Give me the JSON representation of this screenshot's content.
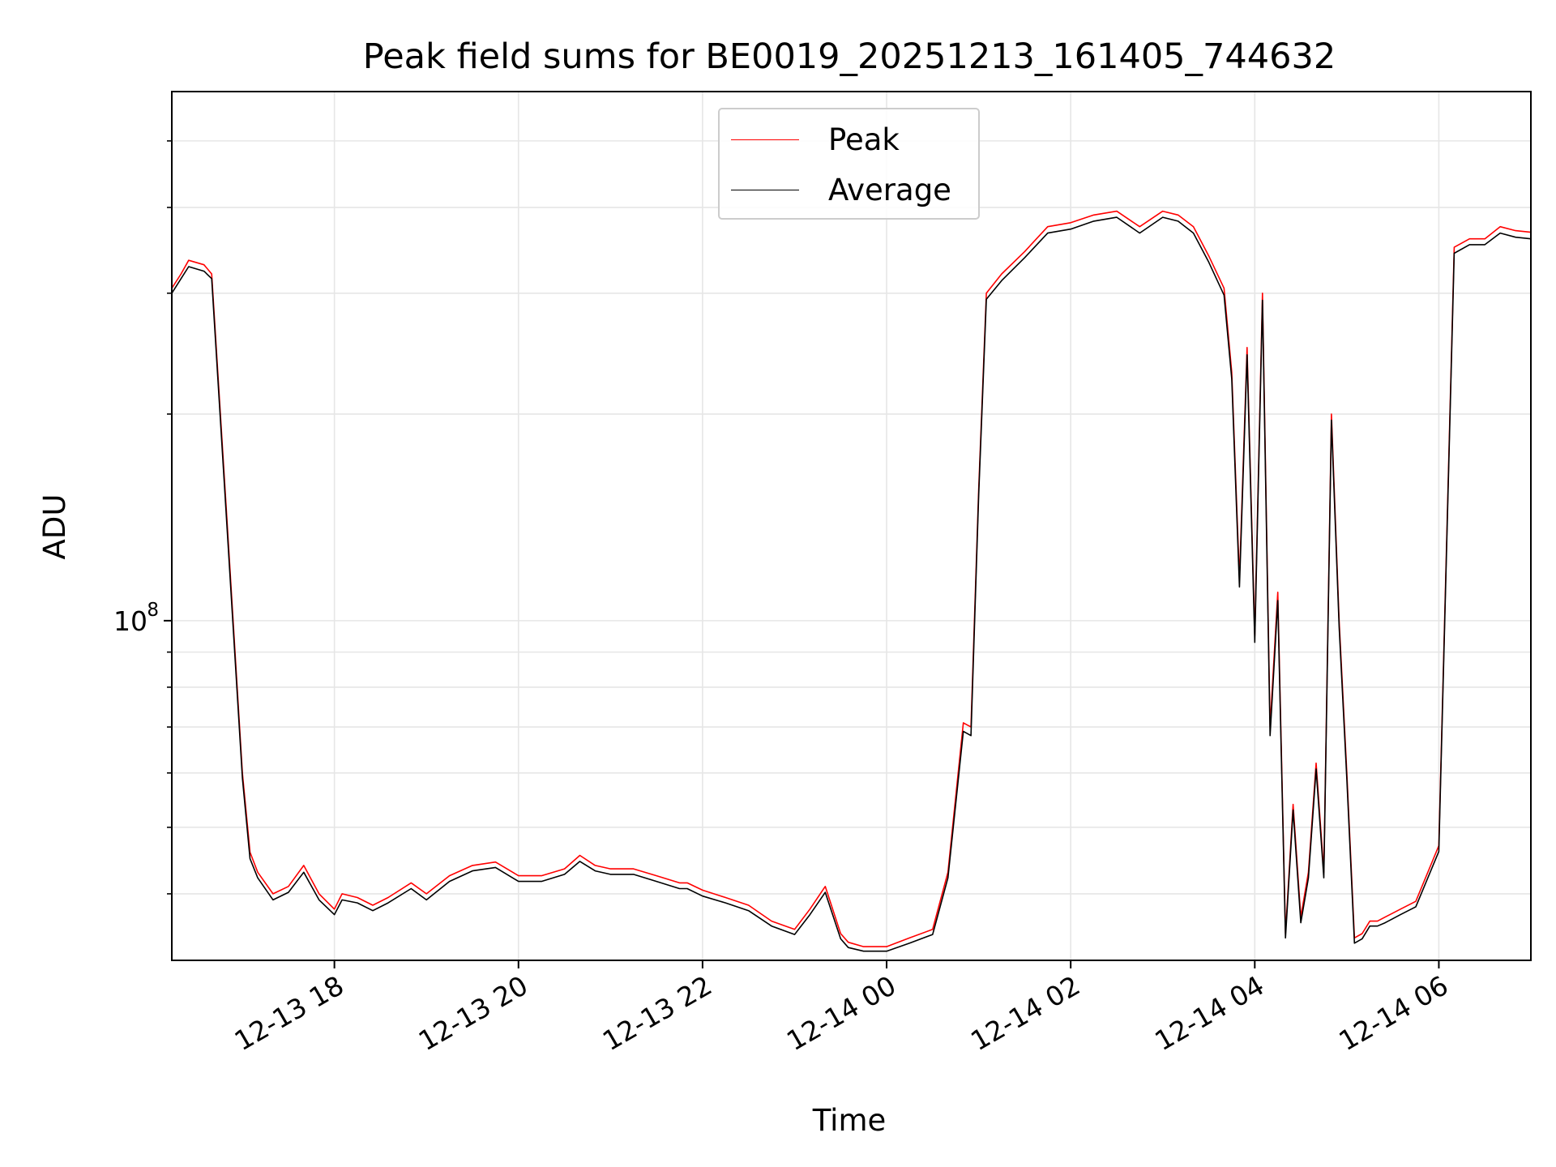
{
  "chart_data": {
    "type": "line",
    "title": "Peak field sums for BE0019_20251213_161405_744632",
    "xlabel": "Time",
    "ylabel": "ADU",
    "yscale": "log",
    "grid": true,
    "legend_position": "upper center",
    "x_tick_labels": [
      "12-13 18",
      "12-13 20",
      "12-13 22",
      "12-14 00",
      "12-14 02",
      "12-14 04",
      "12-14 06"
    ],
    "y_tick_labels": [
      {
        "label": "10",
        "exponent": "8",
        "value": 100000000
      }
    ],
    "xlim": [
      "2025-12-13 16:14",
      "2025-12-14 07:00"
    ],
    "ylim": [
      32000000,
      590000000
    ],
    "x": [
      "2025-12-13 16:14",
      "2025-12-13 16:20",
      "2025-12-13 16:25",
      "2025-12-13 16:35",
      "2025-12-13 16:40",
      "2025-12-13 16:50",
      "2025-12-13 17:00",
      "2025-12-13 17:05",
      "2025-12-13 17:10",
      "2025-12-13 17:20",
      "2025-12-13 17:30",
      "2025-12-13 17:40",
      "2025-12-13 17:50",
      "2025-12-13 18:00",
      "2025-12-13 18:05",
      "2025-12-13 18:15",
      "2025-12-13 18:25",
      "2025-12-13 18:35",
      "2025-12-13 18:50",
      "2025-12-13 19:00",
      "2025-12-13 19:15",
      "2025-12-13 19:30",
      "2025-12-13 19:45",
      "2025-12-13 20:00",
      "2025-12-13 20:15",
      "2025-12-13 20:30",
      "2025-12-13 20:40",
      "2025-12-13 20:50",
      "2025-12-13 21:00",
      "2025-12-13 21:15",
      "2025-12-13 21:30",
      "2025-12-13 21:45",
      "2025-12-13 21:50",
      "2025-12-13 22:00",
      "2025-12-13 22:15",
      "2025-12-13 22:30",
      "2025-12-13 22:45",
      "2025-12-13 23:00",
      "2025-12-13 23:10",
      "2025-12-13 23:20",
      "2025-12-13 23:30",
      "2025-12-13 23:35",
      "2025-12-13 23:45",
      "2025-12-14 00:00",
      "2025-12-14 00:15",
      "2025-12-14 00:30",
      "2025-12-14 00:40",
      "2025-12-14 00:50",
      "2025-12-14 00:55",
      "2025-12-14 01:00",
      "2025-12-14 01:05",
      "2025-12-14 01:15",
      "2025-12-14 01:30",
      "2025-12-14 01:45",
      "2025-12-14 02:00",
      "2025-12-14 02:15",
      "2025-12-14 02:30",
      "2025-12-14 02:45",
      "2025-12-14 03:00",
      "2025-12-14 03:10",
      "2025-12-14 03:20",
      "2025-12-14 03:30",
      "2025-12-14 03:40",
      "2025-12-14 03:45",
      "2025-12-14 03:50",
      "2025-12-14 03:55",
      "2025-12-14 04:00",
      "2025-12-14 04:05",
      "2025-12-14 04:10",
      "2025-12-14 04:15",
      "2025-12-14 04:20",
      "2025-12-14 04:25",
      "2025-12-14 04:30",
      "2025-12-14 04:35",
      "2025-12-14 04:40",
      "2025-12-14 04:45",
      "2025-12-14 04:50",
      "2025-12-14 04:55",
      "2025-12-14 05:00",
      "2025-12-14 05:05",
      "2025-12-14 05:10",
      "2025-12-14 05:15",
      "2025-12-14 05:20",
      "2025-12-14 05:25",
      "2025-12-14 05:30",
      "2025-12-14 05:35",
      "2025-12-14 05:45",
      "2025-12-14 06:00",
      "2025-12-14 06:10",
      "2025-12-14 06:20",
      "2025-12-14 06:30",
      "2025-12-14 06:40",
      "2025-12-14 06:50",
      "2025-12-14 07:00"
    ],
    "series": [
      {
        "name": "Peak",
        "color": "#ff0000",
        "values": [
          305000000,
          320000000,
          335000000,
          330000000,
          320000000,
          140000000,
          60000000,
          46000000,
          43000000,
          40000000,
          41000000,
          44000000,
          40000000,
          38000000,
          40000000,
          39500000,
          38500000,
          39500000,
          41500000,
          40000000,
          42500000,
          44000000,
          44500000,
          42500000,
          42500000,
          43500000,
          45500000,
          44000000,
          43500000,
          43500000,
          42500000,
          41500000,
          41500000,
          40500000,
          39500000,
          38500000,
          36500000,
          35500000,
          38000000,
          41000000,
          35000000,
          34000000,
          33500000,
          33500000,
          34500000,
          35500000,
          43000000,
          71000000,
          70000000,
          155000000,
          300000000,
          320000000,
          345000000,
          375000000,
          380000000,
          390000000,
          395000000,
          375000000,
          395000000,
          390000000,
          375000000,
          340000000,
          305000000,
          230000000,
          115000000,
          250000000,
          95000000,
          300000000,
          70000000,
          110000000,
          35000000,
          54000000,
          37000000,
          43000000,
          62000000,
          43000000,
          200000000,
          100000000,
          60000000,
          34500000,
          35000000,
          36500000,
          36500000,
          37000000,
          37500000,
          38000000,
          39000000,
          47000000,
          350000000,
          360000000,
          360000000,
          375000000,
          370000000,
          368000000
        ]
      },
      {
        "name": "Average",
        "color": "#000000",
        "values": [
          300000000,
          315000000,
          328000000,
          323000000,
          315000000,
          137000000,
          59000000,
          45000000,
          42200000,
          39200000,
          40200000,
          43000000,
          39200000,
          37300000,
          39200000,
          38800000,
          37800000,
          38800000,
          40700000,
          39200000,
          41700000,
          43200000,
          43700000,
          41700000,
          41700000,
          42700000,
          44600000,
          43200000,
          42700000,
          42700000,
          41700000,
          40700000,
          40700000,
          39700000,
          38800000,
          37800000,
          35900000,
          34900000,
          37300000,
          40200000,
          34400000,
          33400000,
          33000000,
          33000000,
          33900000,
          34900000,
          42200000,
          69000000,
          68000000,
          152000000,
          294000000,
          313000000,
          338000000,
          367000000,
          372000000,
          382000000,
          387000000,
          367000000,
          387000000,
          382000000,
          367000000,
          333000000,
          298000000,
          225000000,
          112000000,
          244000000,
          93000000,
          293000000,
          68000000,
          107000000,
          34500000,
          53000000,
          36300000,
          42200000,
          60800000,
          42200000,
          196000000,
          98000000,
          58800000,
          33900000,
          34400000,
          35900000,
          35900000,
          36300000,
          36800000,
          37300000,
          38300000,
          46100000,
          343000000,
          353000000,
          353000000,
          367000000,
          362000000,
          360000000
        ]
      }
    ]
  }
}
